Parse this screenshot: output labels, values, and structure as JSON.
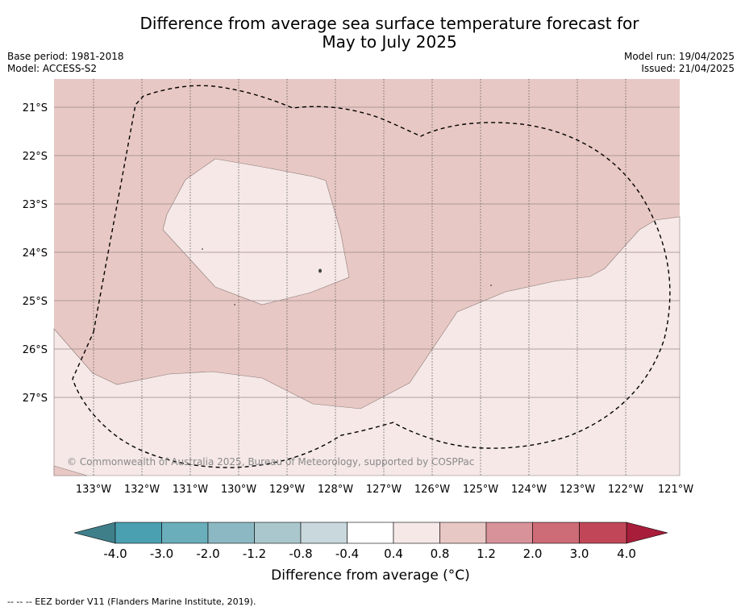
{
  "title_line1": "Difference from average sea surface temperature forecast for",
  "title_line2": "May to July 2025",
  "meta": {
    "base_period": "Base period: 1981-2018",
    "model": "Model: ACCESS-S2",
    "model_run": "Model run: 19/04/2025",
    "issued": "Issued: 21/04/2025"
  },
  "copyright": "© Commonwealth of Australia 2025, Bureau of Meteorology, supported by COSPPac",
  "lat_labels": [
    "21°S",
    "22°S",
    "23°S",
    "24°S",
    "25°S",
    "26°S",
    "27°S"
  ],
  "lon_labels": [
    "133°W",
    "132°W",
    "131°W",
    "130°W",
    "129°W",
    "128°W",
    "127°W",
    "126°W",
    "125°W",
    "124°W",
    "123°W",
    "122°W",
    "121°W"
  ],
  "colorbar": {
    "title": "Difference from average (°C)",
    "tick_labels": [
      "-4.0",
      "-3.0",
      "-2.0",
      "-1.2",
      "-0.8",
      "-0.4",
      "0.4",
      "0.8",
      "1.2",
      "2.0",
      "3.0",
      "4.0"
    ],
    "colors": [
      "#4aa0b0",
      "#6aaebb",
      "#8cb8c3",
      "#a9c7cc",
      "#c8d8dc",
      "#ffffff",
      "#f5e8e7",
      "#e8c8c4",
      "#d8929a",
      "#cd6b76",
      "#c14758"
    ],
    "under_color": "#3f7f8a",
    "over_color": "#a71d3a"
  },
  "map_colors": {
    "band_0_8_1_2": "#e8c8c4",
    "band_0_4_0_8": "#f5e8e7"
  },
  "footnote": "--  --  -- EEZ border V11 (Flanders Marine Institute, 2019)."
}
